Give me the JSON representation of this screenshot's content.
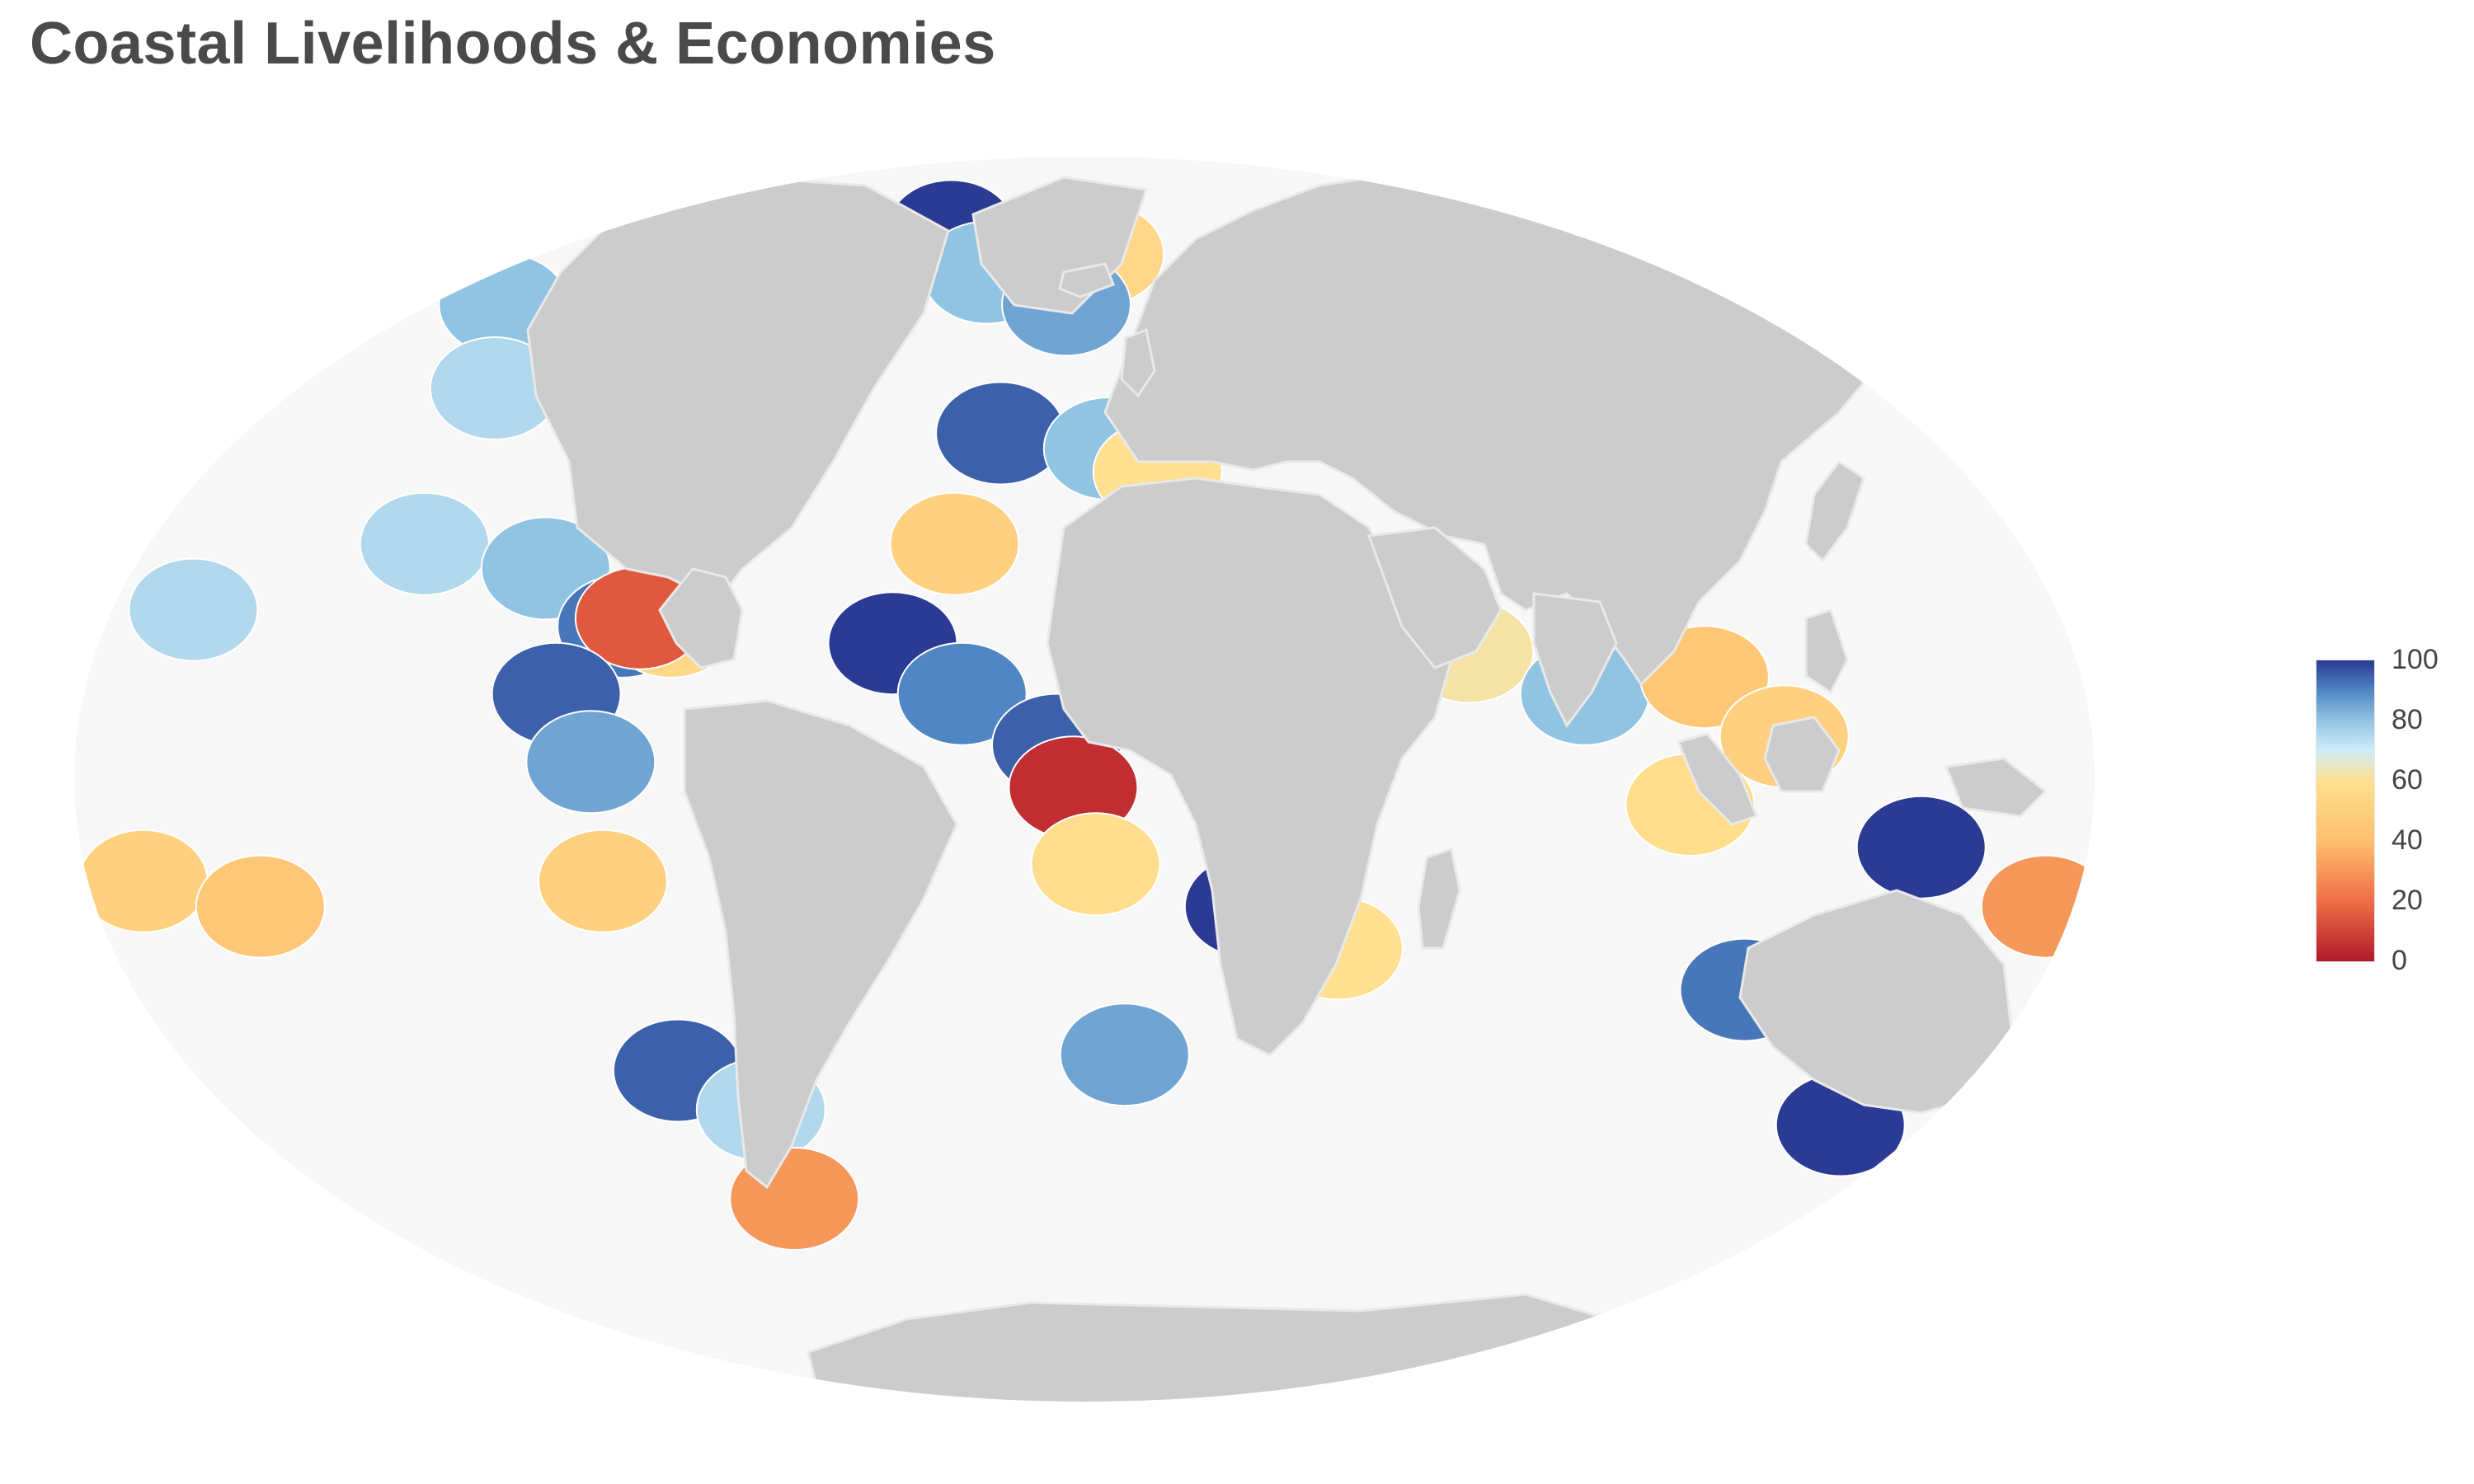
{
  "title": "Coastal Livelihoods & Economies",
  "colorbar": {
    "ticks": [
      "100",
      "80",
      "60",
      "40",
      "20",
      "0"
    ],
    "tick_values": [
      100,
      80,
      60,
      40,
      20,
      0
    ],
    "range": [
      0,
      100
    ],
    "colorscale": [
      [
        0,
        "#b2182b"
      ],
      [
        0.2,
        "#ef6f45"
      ],
      [
        0.4,
        "#fdbf6f"
      ],
      [
        0.6,
        "#fee090"
      ],
      [
        0.7,
        "#d1ecf7"
      ],
      [
        0.8,
        "#91c4e3"
      ],
      [
        0.9,
        "#4f86c3"
      ],
      [
        1,
        "#2b3a93"
      ]
    ]
  },
  "colors": {
    "ocean": "#f7f7f8",
    "land": "#cccccc",
    "land_border": "#e9e9e9"
  },
  "chart_data": {
    "type": "choropleth",
    "projection": "mollweide",
    "value_range": [
      0,
      100
    ],
    "regions": [
      {
        "lon": -155,
        "lat": 20,
        "value": 75
      },
      {
        "lon": -150,
        "lat": 60,
        "value": 80
      },
      {
        "lon": -125,
        "lat": 48,
        "value": 75
      },
      {
        "lon": -117,
        "lat": 28,
        "value": 75
      },
      {
        "lon": -92,
        "lat": 25,
        "value": 80
      },
      {
        "lon": -70,
        "lat": 40,
        "value": 85
      },
      {
        "lon": -60,
        "lat": 47,
        "value": 90
      },
      {
        "lon": -95,
        "lat": 70,
        "value": 85
      },
      {
        "lon": -75,
        "lat": 18,
        "value": 92
      },
      {
        "lon": -66,
        "lat": 18,
        "value": 55
      },
      {
        "lon": -72,
        "lat": 19,
        "value": 15
      },
      {
        "lon": -85,
        "lat": 10,
        "value": 95
      },
      {
        "lon": -78,
        "lat": 2,
        "value": 85
      },
      {
        "lon": -77,
        "lat": -12,
        "value": 50
      },
      {
        "lon": -72,
        "lat": -35,
        "value": 95
      },
      {
        "lon": -58,
        "lat": -40,
        "value": 75
      },
      {
        "lon": -45,
        "lat": -5,
        "value": 75
      },
      {
        "lon": -60,
        "lat": -52,
        "value": 30
      },
      {
        "lon": -40,
        "lat": 72,
        "value": 100
      },
      {
        "lon": -20,
        "lat": 65,
        "value": 80
      },
      {
        "lon": 15,
        "lat": 68,
        "value": 55
      },
      {
        "lon": 5,
        "lat": 60,
        "value": 85
      },
      {
        "lon": -8,
        "lat": 42,
        "value": 95
      },
      {
        "lon": 15,
        "lat": 40,
        "value": 80
      },
      {
        "lon": 25,
        "lat": 37,
        "value": 60
      },
      {
        "lon": -15,
        "lat": 28,
        "value": 50
      },
      {
        "lon": -25,
        "lat": 16,
        "value": 100
      },
      {
        "lon": -12,
        "lat": 10,
        "value": 90
      },
      {
        "lon": 5,
        "lat": 4,
        "value": 95
      },
      {
        "lon": 8,
        "lat": -1,
        "value": 5
      },
      {
        "lon": 12,
        "lat": -10,
        "value": 58
      },
      {
        "lon": 18,
        "lat": -33,
        "value": 85
      },
      {
        "lon": 40,
        "lat": -15,
        "value": 100
      },
      {
        "lon": 47,
        "lat": -19,
        "value": 85
      },
      {
        "lon": 57,
        "lat": -20,
        "value": 60
      },
      {
        "lon": 45,
        "lat": 10,
        "value": 90
      },
      {
        "lon": 38,
        "lat": 20,
        "value": 95
      },
      {
        "lon": 80,
        "lat": 15,
        "value": 62
      },
      {
        "lon": 100,
        "lat": 10,
        "value": 80
      },
      {
        "lon": 122,
        "lat": 12,
        "value": 45
      },
      {
        "lon": 118,
        "lat": -3,
        "value": 58
      },
      {
        "lon": 135,
        "lat": 5,
        "value": 50
      },
      {
        "lon": 160,
        "lat": -8,
        "value": 100
      },
      {
        "lon": 130,
        "lat": 38,
        "value": 95
      },
      {
        "lon": 150,
        "lat": 45,
        "value": 70
      },
      {
        "lon": 135,
        "lat": -25,
        "value": 92
      },
      {
        "lon": 172,
        "lat": -42,
        "value": 100
      },
      {
        "lon": -175,
        "lat": -15,
        "value": 30
      },
      {
        "lon": -160,
        "lat": -12,
        "value": 50
      },
      {
        "lon": -140,
        "lat": -15,
        "value": 45
      }
    ]
  }
}
